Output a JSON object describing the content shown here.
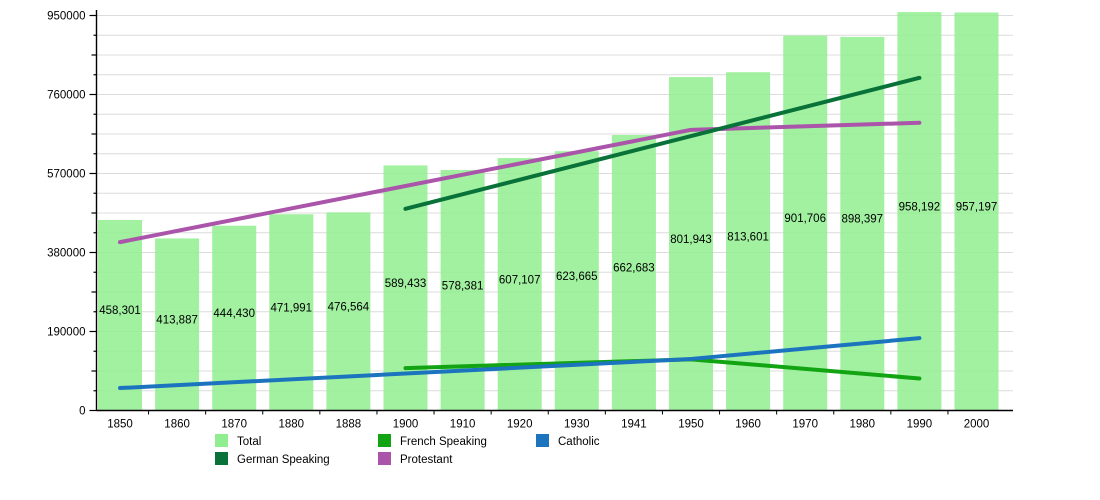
{
  "chart_data": {
    "type": "bar+line",
    "title": "",
    "xlabel": "",
    "ylabel": "",
    "ylim": [
      0,
      950000
    ],
    "ytick_labels": [
      "0",
      "190000",
      "380000",
      "570000",
      "760000",
      "950000"
    ],
    "ytick_values": [
      0,
      190000,
      380000,
      570000,
      760000,
      950000
    ],
    "minor_grid_step": 47500,
    "grid": "horizontal",
    "legend_position": "bottom",
    "categories": [
      "1850",
      "1860",
      "1870",
      "1880",
      "1888",
      "1900",
      "1910",
      "1920",
      "1930",
      "1941",
      "1950",
      "1960",
      "1970",
      "1980",
      "1990",
      "2000"
    ],
    "bar_series": {
      "name": "Total",
      "values": [
        458301,
        413887,
        444430,
        471991,
        476564,
        589433,
        578381,
        607107,
        623665,
        662683,
        801943,
        813601,
        901706,
        898397,
        958192,
        957197
      ],
      "value_labels": [
        "458,301",
        "413,887",
        "444,430",
        "471,991",
        "476,564",
        "589,433",
        "578,381",
        "607,107",
        "623,665",
        "662,683",
        "801,943",
        "813,601",
        "901,706",
        "898,397",
        "958,192",
        "957,197"
      ]
    },
    "line_series": [
      {
        "name": "Protestant",
        "points": [
          [
            "1850",
            405000
          ],
          [
            "1950",
            675000
          ],
          [
            "1990",
            692000
          ]
        ]
      },
      {
        "name": "German Speaking",
        "points": [
          [
            "1900",
            485000
          ],
          [
            "1990",
            800000
          ]
        ]
      },
      {
        "name": "French Speaking",
        "points": [
          [
            "1900",
            102000
          ],
          [
            "1950",
            123000
          ],
          [
            "1990",
            77000
          ]
        ]
      },
      {
        "name": "Catholic",
        "points": [
          [
            "1850",
            54000
          ],
          [
            "1950",
            124000
          ],
          [
            "1990",
            174000
          ]
        ]
      }
    ],
    "legend": [
      {
        "label": "Total",
        "type": "bar"
      },
      {
        "label": "French Speaking",
        "type": "line"
      },
      {
        "label": "Catholic",
        "type": "line"
      },
      {
        "label": "German Speaking",
        "type": "line"
      },
      {
        "label": "Protestant",
        "type": "line"
      }
    ],
    "colors": {
      "Total": "#90EE90",
      "French Speaking": "#12A412",
      "Catholic": "#1B74BD",
      "German Speaking": "#087238",
      "Protestant": "#AA55AA",
      "grid": "#DCDCDC",
      "axis": "#000000",
      "label_text": "#000000"
    }
  }
}
